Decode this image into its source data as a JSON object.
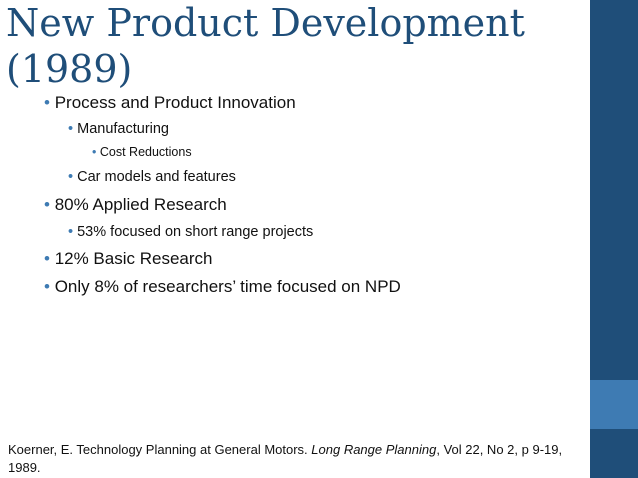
{
  "slide": {
    "title": "New Product Development (1989)",
    "bullets": [
      {
        "level": 1,
        "text": "Process and Product Innovation"
      },
      {
        "level": 2,
        "text": "Manufacturing"
      },
      {
        "level": 3,
        "text": "Cost Reductions"
      },
      {
        "level": 2,
        "text": "Car models and features"
      },
      {
        "level": 1,
        "text": "80% Applied Research"
      },
      {
        "level": 2,
        "text": "53% focused on short range projects"
      },
      {
        "level": 1,
        "text": "12% Basic Research"
      },
      {
        "level": 1,
        "text": "Only 8% of researchers’ time focused on NPD"
      }
    ],
    "citation": {
      "prefix": "Koerner, E. Technology Planning at General Motors. ",
      "journal": "Long Range Planning",
      "suffix": ", Vol 22, No 2, p 9-19, 1989."
    }
  }
}
